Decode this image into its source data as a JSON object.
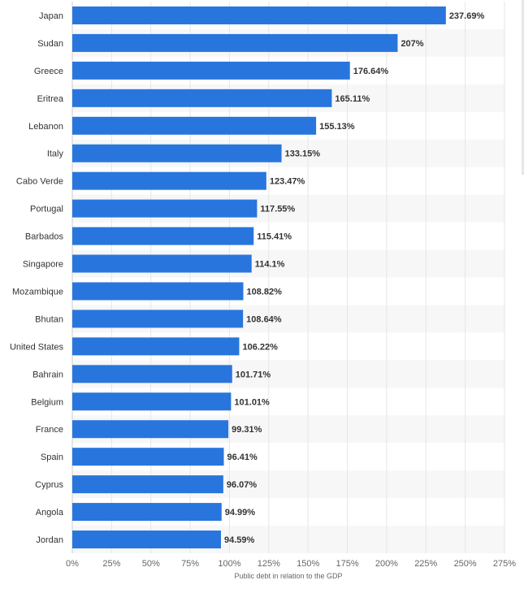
{
  "chart_data": {
    "type": "bar",
    "orientation": "horizontal",
    "categories": [
      "Japan",
      "Sudan",
      "Greece",
      "Eritrea",
      "Lebanon",
      "Italy",
      "Cabo Verde",
      "Portugal",
      "Barbados",
      "Singapore",
      "Mozambique",
      "Bhutan",
      "United States",
      "Bahrain",
      "Belgium",
      "France",
      "Spain",
      "Cyprus",
      "Angola",
      "Jordan"
    ],
    "values": [
      237.69,
      207,
      176.64,
      165.11,
      155.13,
      133.15,
      123.47,
      117.55,
      115.41,
      114.1,
      108.82,
      108.64,
      106.22,
      101.71,
      101.01,
      99.31,
      96.41,
      96.07,
      94.99,
      94.59
    ],
    "value_labels": [
      "237.69%",
      "207%",
      "176.64%",
      "165.11%",
      "155.13%",
      "133.15%",
      "123.47%",
      "117.55%",
      "115.41%",
      "114.1%",
      "108.82%",
      "108.64%",
      "106.22%",
      "101.71%",
      "101.01%",
      "99.31%",
      "96.41%",
      "96.07%",
      "94.99%",
      "94.59%"
    ],
    "title": "",
    "xlabel": "Public debt in relation to the GDP",
    "ylabel": "",
    "xlim": [
      0,
      275
    ],
    "x_ticks": [
      0,
      25,
      50,
      75,
      100,
      125,
      150,
      175,
      200,
      225,
      250,
      275
    ],
    "x_tick_labels": [
      "0%",
      "25%",
      "50%",
      "75%",
      "100%",
      "125%",
      "150%",
      "175%",
      "200%",
      "225%",
      "250%",
      "275%"
    ],
    "grid": "vertical",
    "alternating_row_bands": true,
    "legend": "none",
    "colors": {
      "bar": "#2876dd",
      "band": "#f7f7f7",
      "grid": "#e6e6e6",
      "axis": "#cccccc"
    }
  }
}
